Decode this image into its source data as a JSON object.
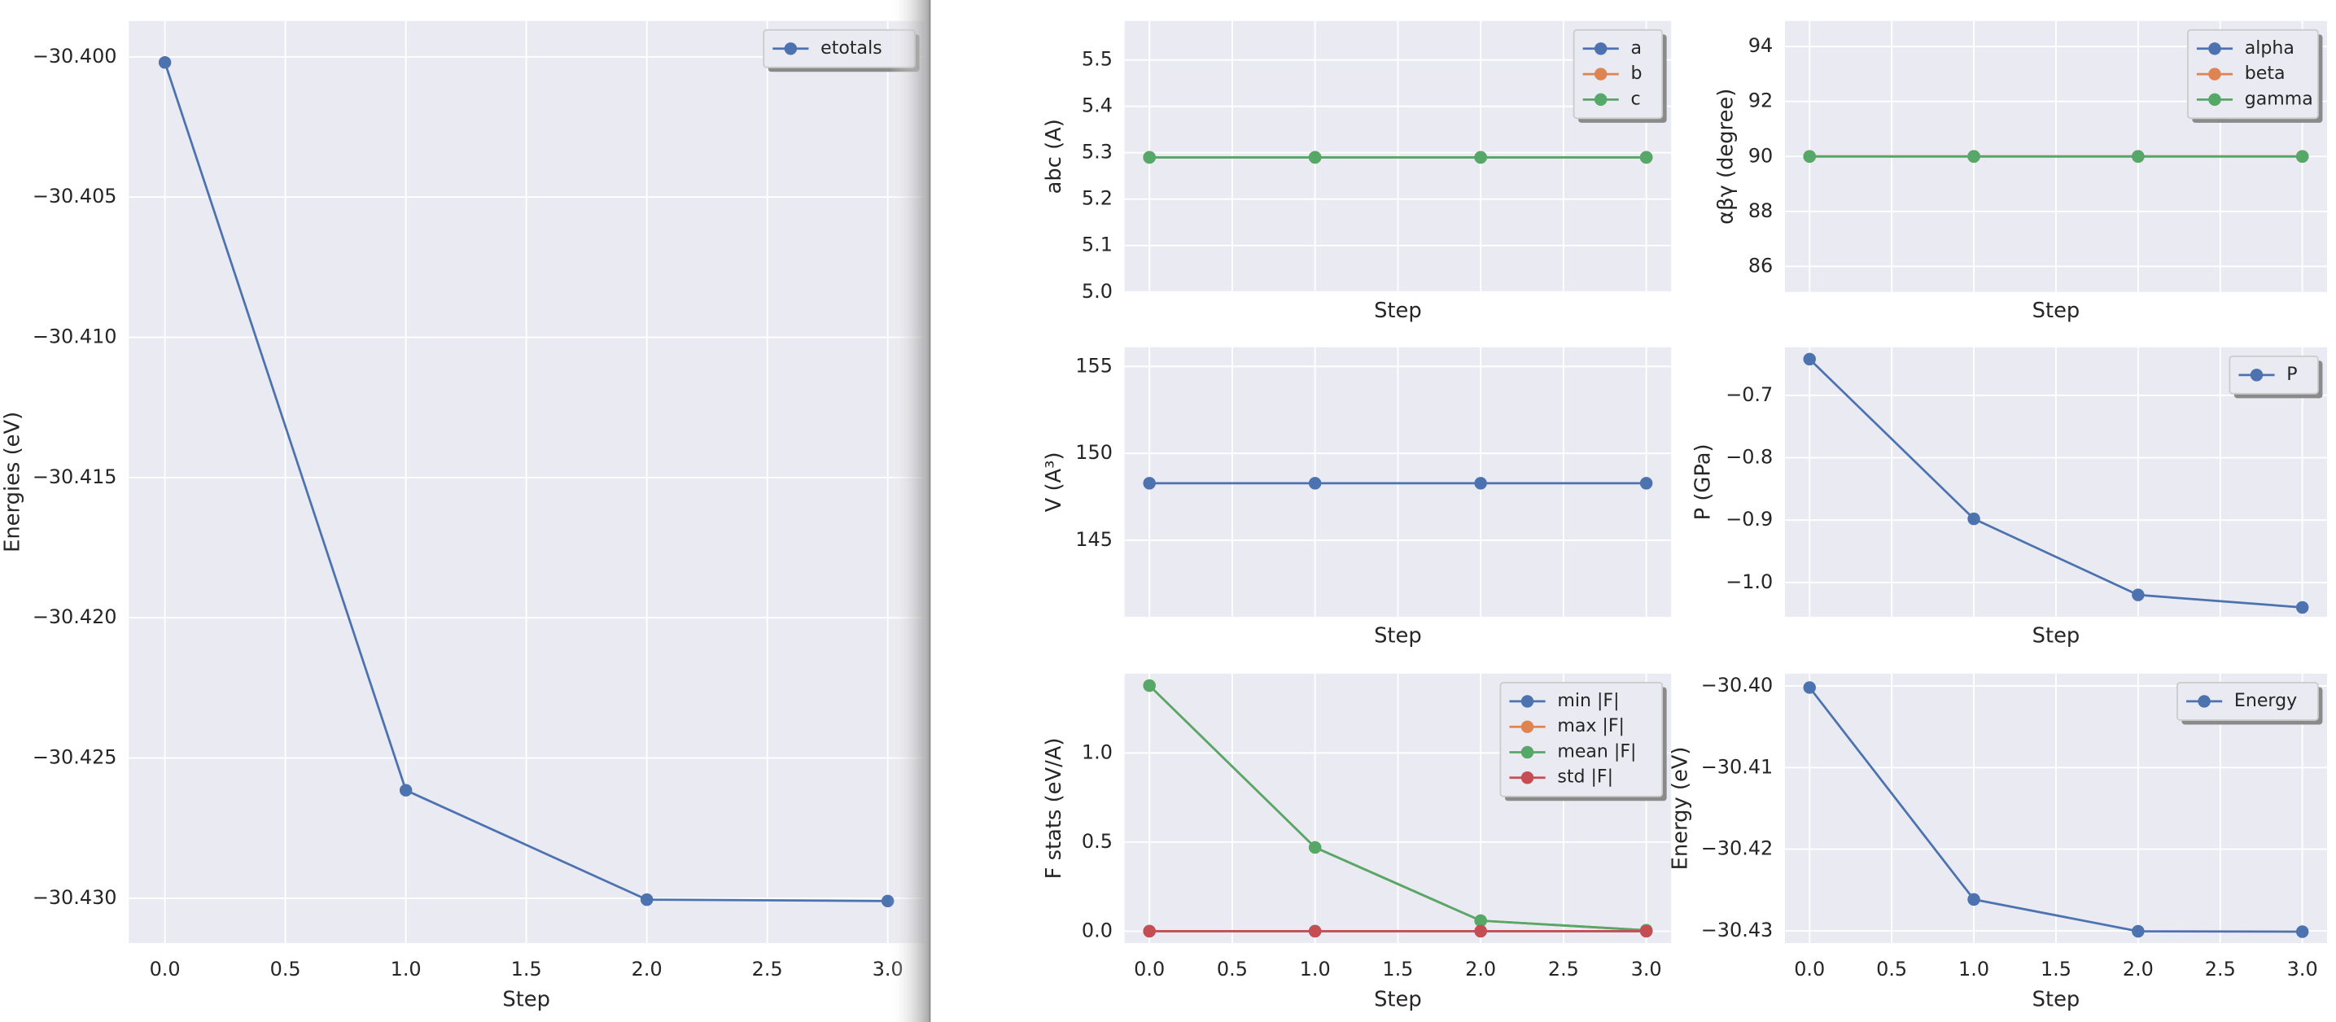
{
  "chart_data": [
    {
      "type": "line",
      "x": [
        0,
        1,
        2,
        3
      ],
      "xlabel": "Step",
      "ylabel": "Energies (eV)",
      "series": [
        {
          "name": "etotals",
          "color": "#4c72b0",
          "values": [
            -30.4002,
            -30.42615,
            -30.43005,
            -30.4301
          ]
        }
      ],
      "xlim": [
        -0.15,
        3.15
      ],
      "ylim": [
        -30.4316,
        -30.39872
      ],
      "xticks": [
        {
          "value": 0,
          "label": "0.0"
        },
        0.5,
        {
          "value": 1,
          "label": "1.0"
        },
        1.5,
        {
          "value": 2,
          "label": "2.0"
        },
        2.5,
        {
          "value": 3,
          "label": "3.0"
        }
      ],
      "xticklabels": true,
      "yticks": [
        {
          "value": -30.43,
          "label": "−30.430"
        },
        {
          "value": -30.425,
          "label": "−30.425"
        },
        {
          "value": -30.42,
          "label": "−30.420"
        },
        {
          "value": -30.415,
          "label": "−30.415"
        },
        {
          "value": -30.41,
          "label": "−30.410"
        },
        {
          "value": -30.405,
          "label": "−30.405"
        },
        {
          "value": -30.4,
          "label": "−30.400"
        }
      ],
      "grid": true,
      "legend": "upper right"
    },
    {
      "type": "line",
      "x": [
        0,
        1,
        2,
        3
      ],
      "xlabel": "Step",
      "ylabel": "abc (A)",
      "series": [
        {
          "name": "a",
          "color": "#4c72b0",
          "values": [
            5.29,
            5.29,
            5.29,
            5.29
          ]
        },
        {
          "name": "b",
          "color": "#dd8452",
          "values": [
            5.29,
            5.29,
            5.29,
            5.29
          ]
        },
        {
          "name": "c",
          "color": "#55a868",
          "values": [
            5.29,
            5.29,
            5.29,
            5.29
          ]
        }
      ],
      "xlim": [
        -0.15,
        3.15
      ],
      "ylim": [
        5.0,
        5.584
      ],
      "xticks": [
        0,
        0.5,
        1,
        1.5,
        2,
        2.5,
        3
      ],
      "xticklabels": false,
      "yticks": [
        {
          "value": 5.0,
          "label": "5.0"
        },
        5.1,
        5.2,
        5.3,
        5.4,
        5.5
      ],
      "grid": true,
      "legend": "upper right"
    },
    {
      "type": "line",
      "x": [
        0,
        1,
        2,
        3
      ],
      "xlabel": "Step",
      "ylabel": "αβγ (degree)",
      "series": [
        {
          "name": "alpha",
          "color": "#4c72b0",
          "values": [
            90,
            90,
            90,
            90
          ]
        },
        {
          "name": "beta",
          "color": "#dd8452",
          "values": [
            90,
            90,
            90,
            90
          ]
        },
        {
          "name": "gamma",
          "color": "#55a868",
          "values": [
            90,
            90,
            90,
            90
          ]
        }
      ],
      "xlim": [
        -0.15,
        3.15
      ],
      "ylim": [
        85.07,
        94.93
      ],
      "xticks": [
        0,
        0.5,
        1,
        1.5,
        2,
        2.5,
        3
      ],
      "xticklabels": false,
      "yticks": [
        86,
        88,
        90,
        92,
        94
      ],
      "grid": true,
      "legend": "upper right"
    },
    {
      "type": "line",
      "x": [
        0,
        1,
        2,
        3
      ],
      "xlabel": "Step",
      "ylabel": "V (A³)",
      "series": [
        {
          "name": "V",
          "color": "#4c72b0",
          "values": [
            148.28,
            148.28,
            148.28,
            148.28
          ]
        }
      ],
      "xlim": [
        -0.15,
        3.15
      ],
      "ylim": [
        140.6,
        156.1
      ],
      "xticks": [
        0,
        0.5,
        1,
        1.5,
        2,
        2.5,
        3
      ],
      "xticklabels": false,
      "yticks": [
        145,
        150,
        155
      ],
      "grid": true,
      "legend": "none"
    },
    {
      "type": "line",
      "x": [
        0,
        1,
        2,
        3
      ],
      "xlabel": "Step",
      "ylabel": "P (GPa)",
      "series": [
        {
          "name": "P",
          "color": "#4c72b0",
          "values": [
            -0.642,
            -0.898,
            -1.02,
            -1.04
          ]
        }
      ],
      "xlim": [
        -0.15,
        3.15
      ],
      "ylim": [
        -1.055,
        -0.623
      ],
      "xticks": [
        0,
        0.5,
        1,
        1.5,
        2,
        2.5,
        3
      ],
      "xticklabels": false,
      "yticks": [
        {
          "value": -1.0,
          "label": "−1.0"
        },
        {
          "value": -0.9,
          "label": "−0.9"
        },
        {
          "value": -0.8,
          "label": "−0.8"
        },
        {
          "value": -0.7,
          "label": "−0.7"
        }
      ],
      "grid": true,
      "legend": "upper right"
    },
    {
      "type": "line",
      "x": [
        0,
        1,
        2,
        3
      ],
      "xlabel": "Step",
      "ylabel": "F stats (eV/A)",
      "series": [
        {
          "name": "min |F|",
          "color": "#4c72b0",
          "values": [
            0,
            0,
            0,
            0
          ]
        },
        {
          "name": "max |F|",
          "color": "#dd8452",
          "values": [
            1.378,
            0.47,
            0.059,
            0.005
          ]
        },
        {
          "name": "mean |F|",
          "color": "#55a868",
          "values": [
            1.378,
            0.47,
            0.059,
            0.005
          ]
        },
        {
          "name": "std |F|",
          "color": "#c44e52",
          "values": [
            0,
            0,
            0,
            0
          ]
        }
      ],
      "xlim": [
        -0.15,
        3.15
      ],
      "ylim": [
        -0.067,
        1.445
      ],
      "xticks": [
        {
          "value": 0,
          "label": "0.0"
        },
        0.5,
        {
          "value": 1,
          "label": "1.0"
        },
        1.5,
        {
          "value": 2,
          "label": "2.0"
        },
        2.5,
        {
          "value": 3,
          "label": "3.0"
        }
      ],
      "xticklabels": true,
      "yticks": [
        {
          "value": 0,
          "label": "0.0"
        },
        0.5,
        {
          "value": 1,
          "label": "1.0"
        }
      ],
      "grid": true,
      "legend": "upper right"
    },
    {
      "type": "line",
      "x": [
        0,
        1,
        2,
        3
      ],
      "xlabel": "Step",
      "ylabel": "Energy (eV)",
      "series": [
        {
          "name": "Energy",
          "color": "#4c72b0",
          "values": [
            -30.4002,
            -30.42615,
            -30.43005,
            -30.4301
          ]
        }
      ],
      "xlim": [
        -0.15,
        3.15
      ],
      "ylim": [
        -30.4315,
        -30.3985
      ],
      "xticks": [
        {
          "value": 0,
          "label": "0.0"
        },
        0.5,
        {
          "value": 1,
          "label": "1.0"
        },
        1.5,
        {
          "value": 2,
          "label": "2.0"
        },
        2.5,
        {
          "value": 3,
          "label": "3.0"
        }
      ],
      "xticklabels": true,
      "yticks": [
        {
          "value": -30.43,
          "label": "−30.43"
        },
        {
          "value": -30.42,
          "label": "−30.42"
        },
        {
          "value": -30.41,
          "label": "−30.41"
        },
        {
          "value": -30.4,
          "label": "−30.40"
        }
      ],
      "grid": true,
      "legend": "upper right"
    }
  ]
}
